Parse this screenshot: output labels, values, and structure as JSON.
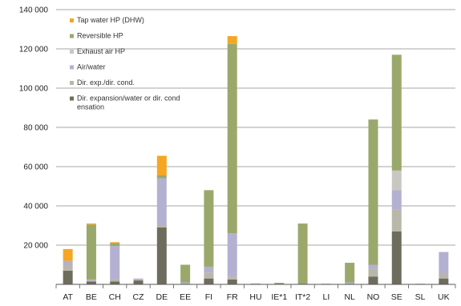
{
  "chart_data": {
    "type": "bar",
    "stacked": true,
    "title": "",
    "xlabel": "",
    "ylabel": "",
    "ylim": [
      0,
      140000
    ],
    "yticks": [
      20000,
      40000,
      60000,
      80000,
      100000,
      120000,
      140000
    ],
    "ytick_labels": [
      "20 000",
      "40 000",
      "60 000",
      "80 000",
      "100 000",
      "120 000",
      "140 000"
    ],
    "grid": "horizontal",
    "legend_placement": "top-left",
    "categories": [
      "AT",
      "BE",
      "CH",
      "CZ",
      "DE",
      "EE",
      "FI",
      "FR",
      "HU",
      "IE*1",
      "IT*2",
      "LI",
      "NL",
      "NO",
      "SE",
      "SL",
      "UK"
    ],
    "series": [
      {
        "name": "Dir. expansion/water or dir. condensation",
        "color": "#6e6c5c",
        "values": [
          7000,
          1500,
          1500,
          2000,
          29000,
          0,
          3000,
          2500,
          0,
          0,
          0,
          0,
          0,
          4000,
          27000,
          0,
          3000
        ]
      },
      {
        "name": "Dir. exp./dir. cond.",
        "color": "#b9b6aa",
        "values": [
          3000,
          500,
          1000,
          500,
          1000,
          0,
          3000,
          1500,
          0,
          0,
          0,
          0,
          0,
          4000,
          11000,
          0,
          2500
        ]
      },
      {
        "name": "Air/water",
        "color": "#b4b0d2",
        "values": [
          2000,
          500,
          17000,
          500,
          24000,
          1000,
          3000,
          22000,
          500,
          0,
          0,
          0,
          1000,
          2000,
          10000,
          0,
          11000
        ]
      },
      {
        "name": "Exhaust air HP",
        "color": "#c9c7c2",
        "values": [
          0,
          0,
          0,
          0,
          0,
          0,
          0,
          0,
          0,
          0,
          0,
          0,
          0,
          0,
          10000,
          0,
          0
        ]
      },
      {
        "name": "Reversible HP",
        "color": "#9aa86c",
        "values": [
          0,
          28000,
          1500,
          0,
          1500,
          9000,
          39000,
          96500,
          0,
          800,
          31000,
          0,
          10000,
          74000,
          59000,
          0,
          0
        ]
      },
      {
        "name": "Tap water HP (DHW)",
        "color": "#f5a623",
        "values": [
          6000,
          500,
          500,
          0,
          10000,
          0,
          0,
          4000,
          0,
          0,
          0,
          0,
          0,
          0,
          0,
          0,
          0
        ]
      }
    ]
  }
}
